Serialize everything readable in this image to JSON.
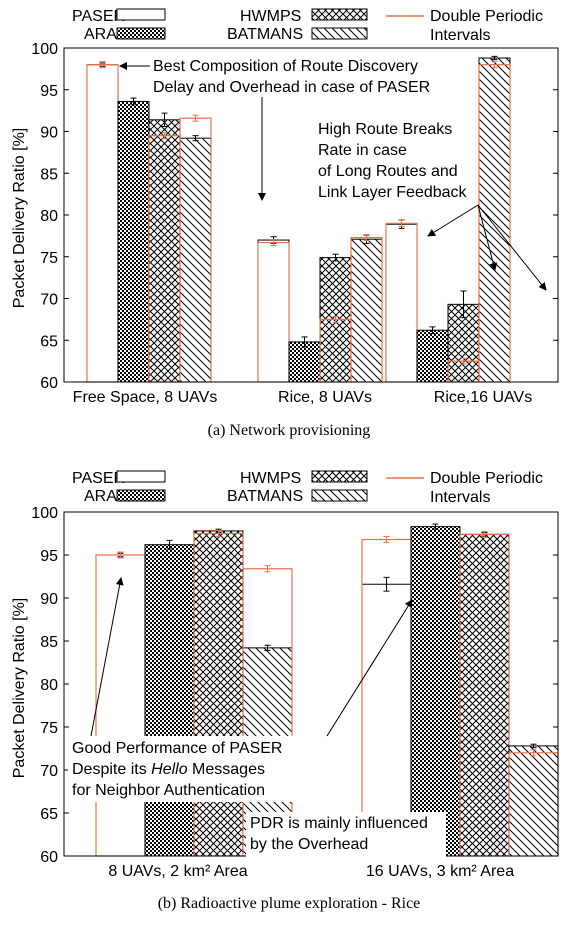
{
  "legend": {
    "paser": "PASER",
    "aran": "ARAN",
    "hwmps": "HWMPS",
    "batmans": "BATMANS",
    "double_line1": "Double Periodic",
    "double_line2": "Intervals"
  },
  "colors": {
    "accent": "#e8704a",
    "ink": "#000000"
  },
  "chart_data": [
    {
      "type": "bar",
      "caption": "(a) Network provisioning",
      "ylabel": "Packet Delivery Ratio [%]",
      "ylim": [
        60,
        100
      ],
      "yticks": [
        60,
        65,
        70,
        75,
        80,
        85,
        90,
        95,
        100
      ],
      "categories": [
        "Free Space, 8 UAVs",
        "Rice, 8 UAVs",
        "Rice,16 UAVs"
      ],
      "series": [
        {
          "name": "PASER",
          "pattern": "white",
          "values": [
            98.0,
            77.0,
            78.9
          ],
          "err": [
            0.2,
            0.4,
            0.5
          ],
          "double_values": [
            98.0,
            76.7,
            79.0
          ]
        },
        {
          "name": "ARAN",
          "pattern": "dots",
          "values": [
            93.6,
            64.8,
            66.2
          ],
          "err": [
            0.4,
            0.6,
            0.4
          ],
          "double_values": [
            null,
            null,
            null
          ]
        },
        {
          "name": "HWMPS",
          "pattern": "cross",
          "values": [
            91.4,
            74.9,
            69.3
          ],
          "err": [
            0.8,
            0.4,
            1.6
          ],
          "double_values": [
            89.5,
            67.5,
            62.5
          ]
        },
        {
          "name": "BATMANS",
          "pattern": "diag",
          "values": [
            89.2,
            77.1,
            98.8
          ],
          "err": [
            0.3,
            0.5,
            0.2
          ],
          "double_values": [
            91.6,
            77.3,
            98.0
          ]
        }
      ],
      "annotations": [
        {
          "text": [
            "Best Composition of Route Discovery",
            "Delay and Overhead in case of PASER"
          ]
        },
        {
          "text": [
            "High Route Breaks",
            "Rate in case",
            "of Long Routes and",
            "Link Layer Feedback"
          ]
        }
      ]
    },
    {
      "type": "bar",
      "caption": "(b) Radioactive plume exploration - Rice",
      "ylabel": "Packet Delivery Ratio [%]",
      "ylim": [
        60,
        100
      ],
      "yticks": [
        60,
        65,
        70,
        75,
        80,
        85,
        90,
        95,
        100
      ],
      "categories": [
        "8 UAVs, 2 km² Area",
        "16 UAVs, 3 km² Area"
      ],
      "series": [
        {
          "name": "PASER",
          "pattern": "white",
          "values": [
            95.0,
            91.6
          ],
          "err": [
            0.2,
            0.8
          ],
          "double_values": [
            95.0,
            96.8
          ]
        },
        {
          "name": "ARAN",
          "pattern": "dots",
          "values": [
            96.2,
            98.3
          ],
          "err": [
            0.5,
            0.3
          ],
          "double_values": [
            null,
            null
          ]
        },
        {
          "name": "HWMPS",
          "pattern": "cross",
          "values": [
            97.8,
            97.4
          ],
          "err": [
            0.2,
            0.2
          ],
          "double_values": [
            97.5,
            97.4
          ]
        },
        {
          "name": "BATMANS",
          "pattern": "diag",
          "values": [
            84.2,
            72.8
          ],
          "err": [
            0.3,
            0.2
          ],
          "double_values": [
            93.4,
            72.0
          ]
        }
      ],
      "annotations": [
        {
          "text": [
            "Good Performance of PASER",
            "Despite its Hello Messages",
            "for Neighbor Authentication"
          ]
        },
        {
          "text": [
            "PDR is mainly influenced",
            "by the Overhead"
          ]
        }
      ]
    }
  ]
}
